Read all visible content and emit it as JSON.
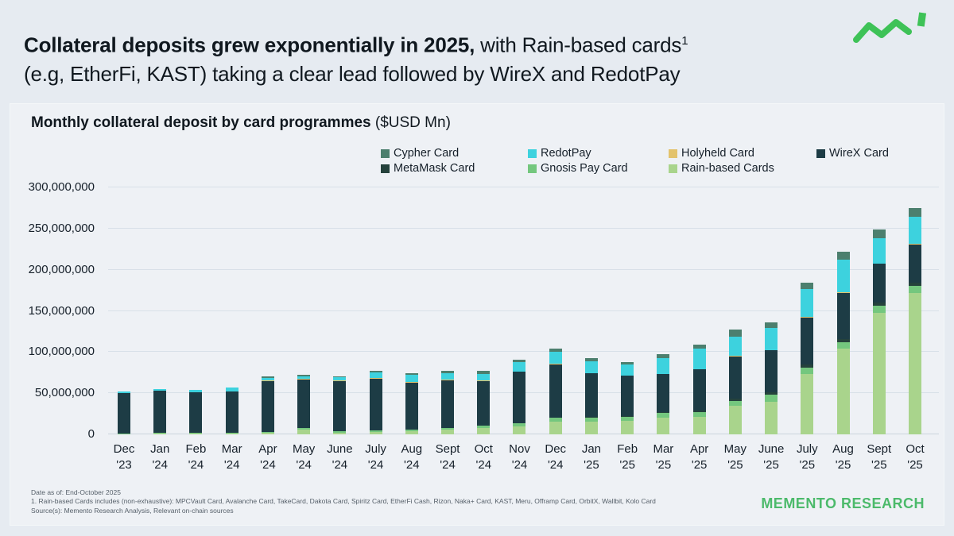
{
  "header": {
    "title_bold": "Collateral deposits grew exponentially in 2025,",
    "title_regular": " with Rain-based cards",
    "title_footnote_marker": "1",
    "title_line2": "(e.g, EtherFi, KAST) taking a clear lead followed by WireX and RedotPay"
  },
  "panel": {
    "title_bold": "Monthly collateral deposit by card programmes",
    "title_units": " ($USD Mn)"
  },
  "legend": {
    "items": [
      {
        "label": "Cypher Card",
        "color": "#4c7f6e"
      },
      {
        "label": "RedotPay",
        "color": "#3dd2de"
      },
      {
        "label": "Holyheld Card",
        "color": "#e3c36c"
      },
      {
        "label": "WireX Card",
        "color": "#1d3c45"
      },
      {
        "label": "MetaMask Card",
        "color": "#25423c"
      },
      {
        "label": "Gnosis Pay Card",
        "color": "#74c77e"
      },
      {
        "label": "Rain-based Cards",
        "color": "#a9d48c"
      }
    ]
  },
  "chart_data": {
    "type": "bar",
    "stacked": true,
    "title": "Monthly collateral deposit by card programmes ($USD Mn)",
    "unit": "USD",
    "values_in": "millions_usd",
    "grid": true,
    "legend_position": "top",
    "categories": [
      "Dec '23",
      "Jan '24",
      "Feb '24",
      "Mar '24",
      "Apr '24",
      "May '24",
      "June '24",
      "July '24",
      "Aug '24",
      "Sept '24",
      "Oct '24",
      "Nov '24",
      "Dec '24",
      "Jan '25",
      "Feb '25",
      "Mar '25",
      "Apr '25",
      "May '25",
      "June '25",
      "July '25",
      "Aug '25",
      "Sept '25",
      "Oct '25"
    ],
    "series": [
      {
        "name": "Rain-based Cards",
        "color": "#a9d48c",
        "values": [
          0,
          1,
          1,
          1,
          2,
          6,
          2,
          3,
          4,
          6,
          8,
          10,
          15,
          15,
          16,
          20,
          21,
          35,
          40,
          73,
          104,
          148,
          172
        ]
      },
      {
        "name": "Gnosis Pay Card",
        "color": "#74c77e",
        "values": [
          1,
          1,
          1,
          1,
          1,
          2,
          2,
          2,
          2,
          2,
          3,
          4,
          5,
          5,
          5,
          6,
          6,
          6,
          8,
          8,
          8,
          8,
          8
        ]
      },
      {
        "name": "MetaMask Card",
        "color": "#25423c",
        "values": [
          0,
          0,
          0,
          0,
          0,
          0,
          0,
          0,
          0,
          0,
          0,
          0,
          0,
          1,
          1,
          1,
          2,
          2,
          3,
          4,
          4,
          4,
          4
        ]
      },
      {
        "name": "WireX Card",
        "color": "#1d3c45",
        "values": [
          49,
          51,
          49,
          50,
          62,
          59,
          61,
          63,
          57,
          58,
          54,
          62,
          65,
          53,
          49,
          46,
          50,
          52,
          51,
          57,
          56,
          47,
          47
        ]
      },
      {
        "name": "Holyheld Card",
        "color": "#e3c36c",
        "values": [
          0.5,
          0.5,
          0.5,
          0.5,
          0.5,
          0.5,
          0.5,
          0.5,
          0.5,
          0.5,
          0.5,
          0.5,
          0.5,
          0.5,
          0.5,
          0.5,
          0.5,
          0.5,
          0.5,
          0.5,
          0.5,
          0.5,
          0.5
        ]
      },
      {
        "name": "RedotPay",
        "color": "#3dd2de",
        "values": [
          2,
          2,
          3,
          4,
          3,
          3,
          4,
          7,
          9,
          8,
          8,
          11,
          15,
          14,
          13,
          19,
          25,
          23,
          27,
          34,
          40,
          31,
          33
        ]
      },
      {
        "name": "Cypher Card",
        "color": "#4c7f6e",
        "values": [
          0,
          0,
          0,
          0,
          2,
          2,
          1,
          2,
          2,
          3,
          4,
          3,
          4,
          4,
          3,
          5,
          5,
          9,
          7,
          8,
          9,
          10,
          10
        ]
      }
    ],
    "y_axis": {
      "min": 0,
      "max": 300000000,
      "tick_interval": 50000000,
      "tick_labels": [
        "0",
        "50,000,000",
        "100,000,000",
        "150,000,000",
        "200,000,000",
        "250,000,000",
        "300,000,000"
      ]
    }
  },
  "footnotes": {
    "line1": "Date as of: End-October 2025",
    "line2": "1. Rain-based Cards includes (non-exhaustive):  MPCVault Card, Avalanche Card, TakeCard, Dakota Card, Spiritz Card, EtherFi Cash, Rizon, Naka+ Card, KAST, Meru, Offramp Card, OrbitX, Wallbit, Kolo Card",
    "line3": "Source(s): Memento Research Analysis, Relevant on-chain sources"
  },
  "brand": {
    "name": "MEMENTO RESEARCH",
    "logo_color": "#3ec257"
  }
}
